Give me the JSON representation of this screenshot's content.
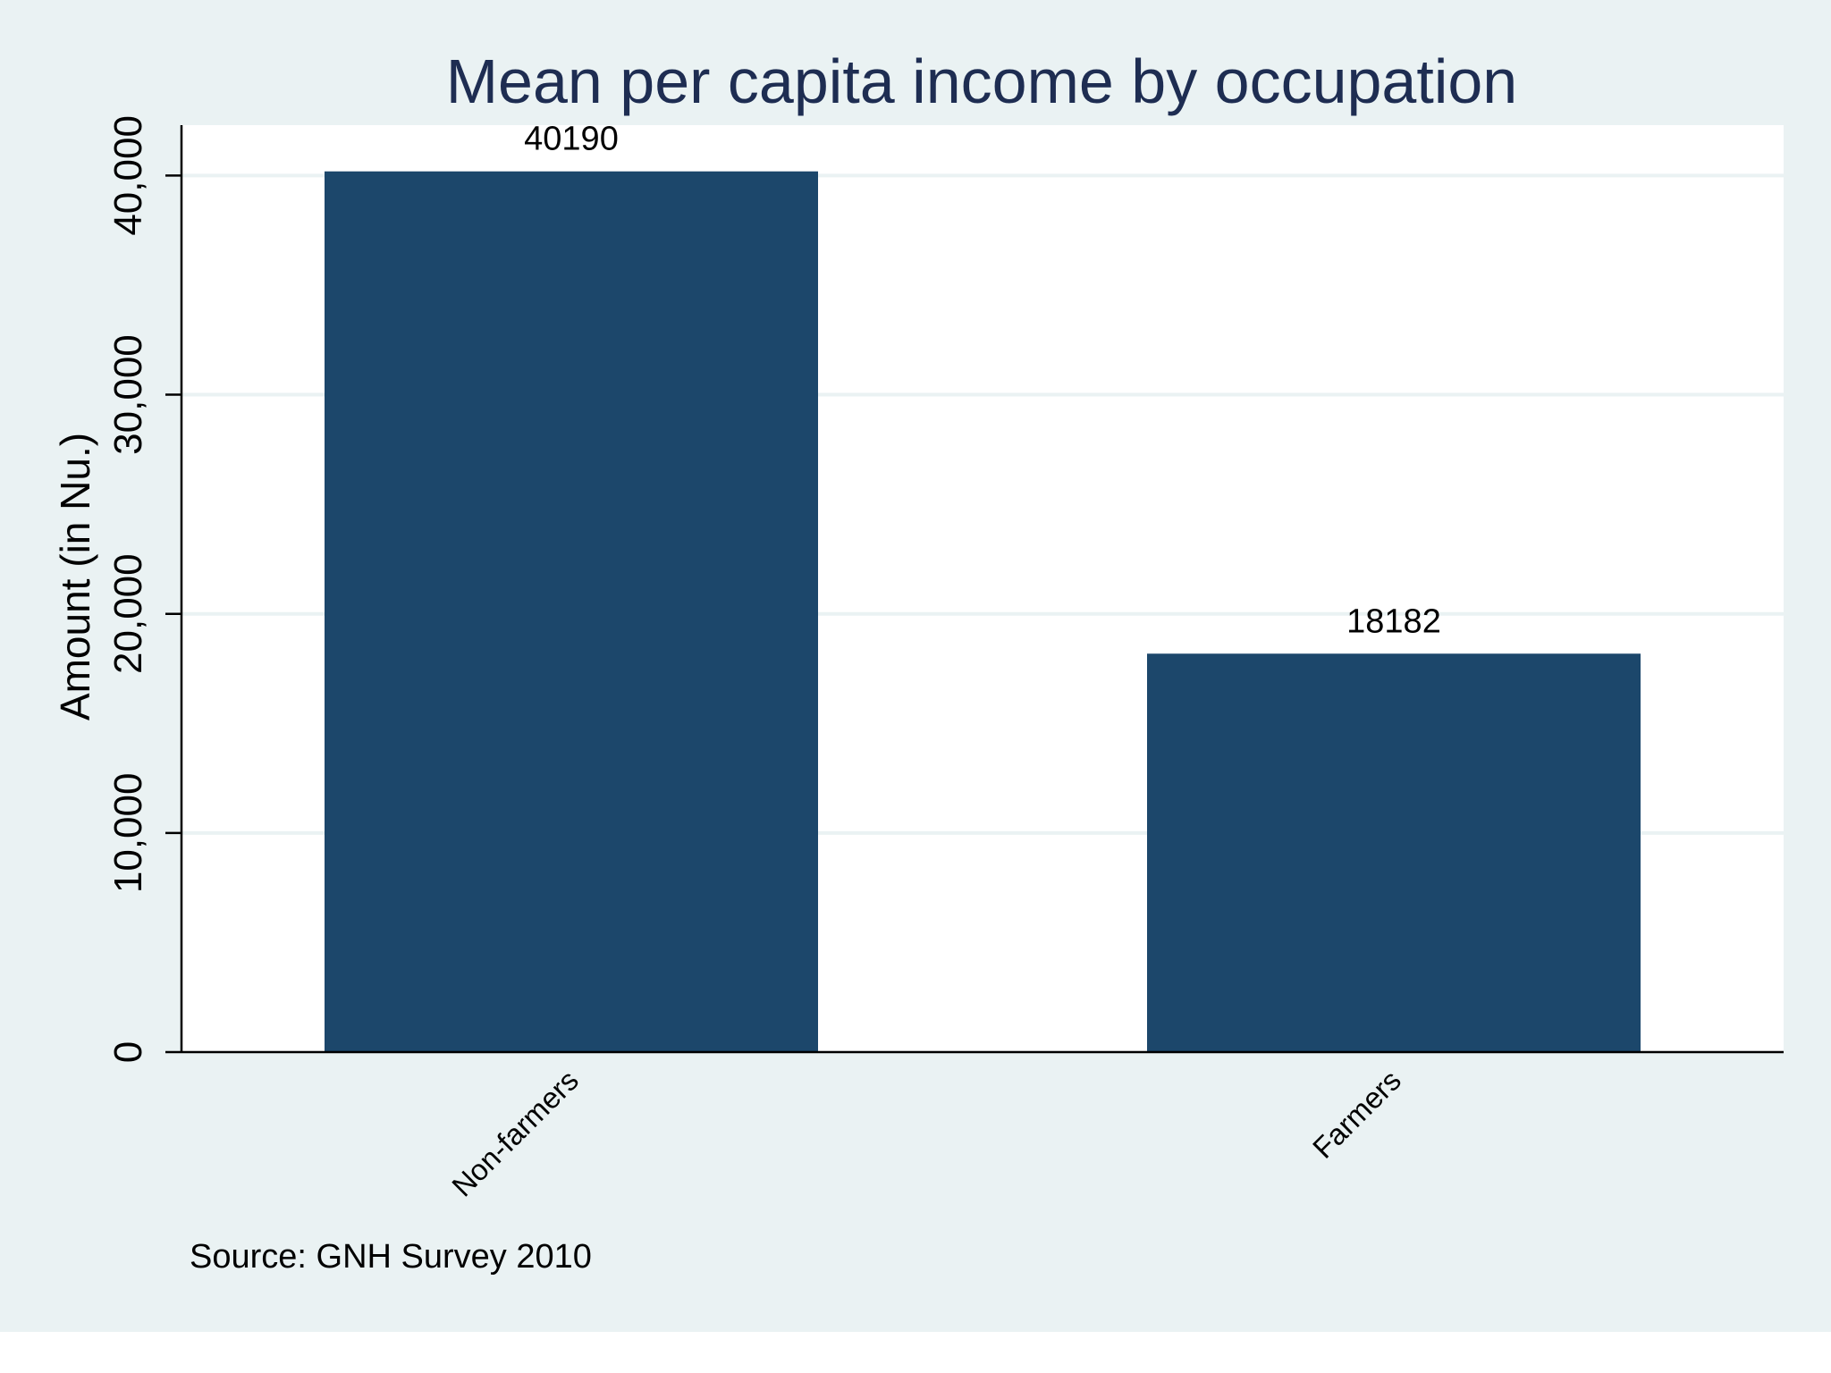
{
  "chart_data": {
    "type": "bar",
    "title": "Mean per capita income by occupation",
    "xlabel": "",
    "ylabel": "Amount (in Nu.)",
    "categories": [
      "Non-farmers",
      "Farmers"
    ],
    "values": [
      40190,
      18182
    ],
    "value_labels": [
      "40190",
      "18182"
    ],
    "yticks": [
      0,
      10000,
      20000,
      30000,
      40000
    ],
    "ytick_labels": [
      "0",
      "10,000",
      "20,000",
      "30,000",
      "40,000"
    ],
    "ylim": [
      0,
      42300
    ],
    "grid": true,
    "legend": "none",
    "note": "Source: GNH Survey 2010",
    "colors": {
      "background": "#eaf2f3",
      "plot_area": "#ffffff",
      "bar": "#1c476b",
      "title": "#1e2d52",
      "gridline": "#eaf2f3",
      "axis": "#000000",
      "text": "#000000"
    }
  }
}
